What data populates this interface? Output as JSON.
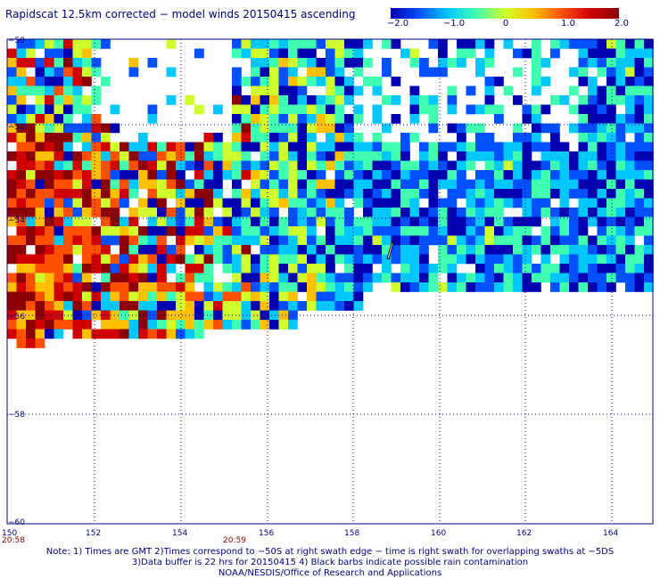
{
  "title": "Rapidscat 12.5km corrected − model winds 20150415 ascending",
  "colorbar": {
    "ticks": [
      "−2.0",
      "−1.0",
      "0",
      "1.0",
      "2.0"
    ],
    "colors": [
      "#0000b0",
      "#0050ff",
      "#00c8ff",
      "#40ffb0",
      "#d0ff30",
      "#ffc000",
      "#ff5000",
      "#d00000",
      "#8b0000"
    ]
  },
  "axes": {
    "lat_labels": [
      "−50",
      "−52",
      "−54",
      "−56",
      "−58",
      "−60"
    ],
    "lon_labels": [
      "150",
      "152",
      "154",
      "156",
      "158",
      "160",
      "162",
      "164"
    ],
    "time_labels": [
      "20:58",
      "20:59"
    ]
  },
  "notes": [
    "Note: 1) Times are GMT 2)Times correspond to −50S at right swath edge − time is right swath for overlapping swaths at −5DS",
    "3)Data buffer is 22 hrs for 20150415 4) Black barbs indicate possible rain contamination",
    "NOAA/NESDIS/Office of Research and Applications"
  ]
}
